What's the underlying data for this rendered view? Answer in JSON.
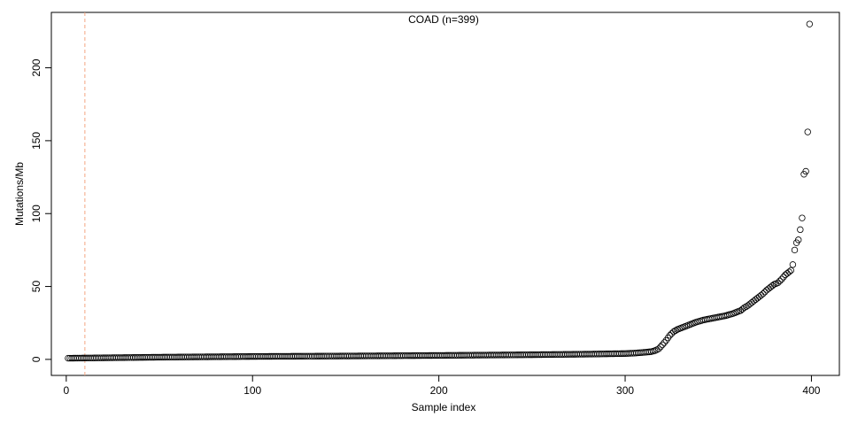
{
  "chart_data": {
    "type": "scatter",
    "title": "COAD (n=399)",
    "xlabel": "Sample index",
    "ylabel": "Mutations/Mb",
    "xlim": [
      -8,
      415
    ],
    "ylim": [
      -11,
      238
    ],
    "xticks": [
      0,
      100,
      200,
      300,
      400
    ],
    "yticks": [
      0,
      50,
      100,
      150,
      200
    ],
    "grid": false,
    "legend": "none",
    "n": 399,
    "reference_line": {
      "orientation": "vertical",
      "x": 10,
      "style": "dashed",
      "color": "#f4a582"
    },
    "marker": {
      "shape": "open-circle",
      "color": "#000000"
    },
    "series": [
      {
        "x": [
          1,
          50,
          100,
          150,
          200,
          250,
          280,
          300,
          305,
          310,
          314,
          316,
          318,
          320,
          322,
          324,
          326,
          328,
          330,
          332,
          335,
          338,
          342,
          346,
          350,
          354,
          358,
          362,
          364,
          366,
          368,
          370,
          372,
          374,
          376,
          378,
          380,
          382,
          384,
          386,
          388,
          389,
          390,
          391,
          392,
          393,
          394,
          395,
          396,
          397,
          398,
          399
        ],
        "y": [
          0.8,
          1.5,
          2.0,
          2.3,
          2.7,
          3.2,
          3.6,
          4.0,
          4.3,
          4.8,
          5.3,
          6.0,
          7.2,
          10.0,
          13.0,
          16.5,
          19.0,
          20.5,
          21.5,
          22.5,
          24.0,
          25.5,
          27.0,
          28.0,
          29.0,
          30.0,
          31.5,
          33.5,
          35.5,
          37.0,
          39.0,
          41.0,
          43.0,
          45.0,
          47.5,
          49.5,
          51.5,
          52.5,
          55.0,
          58.0,
          60.0,
          61.0,
          65.0,
          75.0,
          80.0,
          82.0,
          89.0,
          97.0,
          127.0,
          129.0,
          156.0,
          230.0
        ]
      }
    ]
  }
}
